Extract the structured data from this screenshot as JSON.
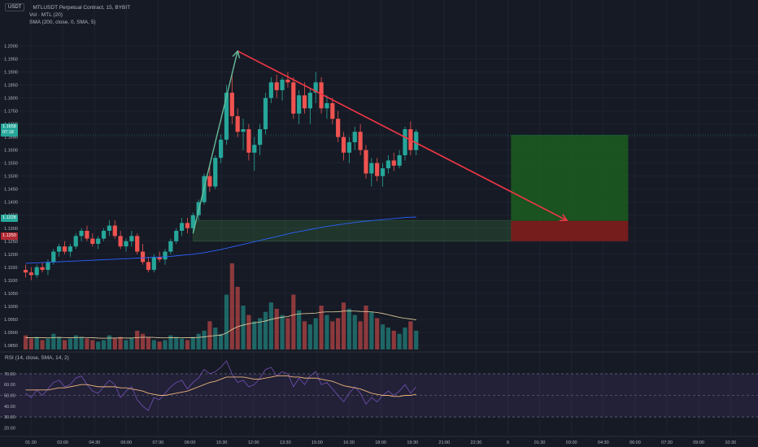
{
  "header": {
    "currency_label": "USDT",
    "symbol_title": "MTLUSDT Perpetual Contract, 15, BYBIT",
    "volume_indicator": "Vol · MTL (20)",
    "sma_indicator": "SMA (200, close, 0, SMA, 5)"
  },
  "rsi": {
    "label": "RSI (14, close, SMA, 14, 2)",
    "ticks": [
      "70.00",
      "60.00",
      "50.00",
      "40.00",
      "30.00",
      "20.00"
    ],
    "tick_values": [
      70,
      60,
      50,
      40,
      30,
      20
    ]
  },
  "price_scale": {
    "ticks": [
      "1.2000",
      "1.1950",
      "1.1900",
      "1.1850",
      "1.1800",
      "1.1750",
      "1.1700",
      "1.1650",
      "1.1600",
      "1.1550",
      "1.1500",
      "1.1450",
      "1.1400",
      "1.1350",
      "1.1300",
      "1.1250",
      "1.1200",
      "1.1150",
      "1.1100",
      "1.1050",
      "1.1000",
      "1.0950",
      "1.0900",
      "1.0850"
    ],
    "tick_values": [
      1.2,
      1.195,
      1.19,
      1.185,
      1.18,
      1.175,
      1.17,
      1.165,
      1.16,
      1.155,
      1.15,
      1.145,
      1.14,
      1.135,
      1.13,
      1.125,
      1.12,
      1.115,
      1.11,
      1.105,
      1.1,
      1.095,
      1.09,
      1.085
    ],
    "current_price_label": "1.1658",
    "current_price_sub": "07:18",
    "target_label": "1.1328",
    "stop_label": "1.1250"
  },
  "time_axis": {
    "labels": [
      "01:30",
      "03:00",
      "04:30",
      "06:00",
      "07:30",
      "09:00",
      "10:30",
      "12:00",
      "13:30",
      "15:00",
      "16:30",
      "18:00",
      "19:30",
      "21:00",
      "22:30",
      "6",
      "01:30",
      "03:00",
      "04:30",
      "06:00",
      "07:30",
      "09:00",
      "10:30"
    ]
  },
  "colors": {
    "background": "#161a25",
    "bull": "#26a69a",
    "bear": "#ef5350",
    "trendline": "#f23645",
    "sma": "#2962ff",
    "profit_zone": "#1b5e20",
    "loss_zone": "#7f1d1d",
    "rsi_line": "#7e57c2",
    "rsi_ma": "#f0b27a",
    "vol_ma": "#e8d4a2"
  },
  "chart_data": {
    "type": "candlestick",
    "interval_minutes": 15,
    "x_start": "01:30",
    "ohlc": [
      [
        1.114,
        1.116,
        1.111,
        1.113
      ],
      [
        1.113,
        1.115,
        1.11,
        1.112
      ],
      [
        1.112,
        1.116,
        1.111,
        1.115
      ],
      [
        1.115,
        1.117,
        1.113,
        1.114
      ],
      [
        1.114,
        1.118,
        1.112,
        1.117
      ],
      [
        1.117,
        1.122,
        1.116,
        1.121
      ],
      [
        1.121,
        1.124,
        1.119,
        1.123
      ],
      [
        1.123,
        1.125,
        1.12,
        1.121
      ],
      [
        1.121,
        1.124,
        1.119,
        1.123
      ],
      [
        1.123,
        1.128,
        1.122,
        1.127
      ],
      [
        1.127,
        1.13,
        1.125,
        1.129
      ],
      [
        1.129,
        1.131,
        1.125,
        1.126
      ],
      [
        1.126,
        1.128,
        1.123,
        1.124
      ],
      [
        1.124,
        1.127,
        1.122,
        1.126
      ],
      [
        1.126,
        1.13,
        1.125,
        1.129
      ],
      [
        1.129,
        1.133,
        1.127,
        1.131
      ],
      [
        1.131,
        1.133,
        1.126,
        1.127
      ],
      [
        1.127,
        1.129,
        1.122,
        1.123
      ],
      [
        1.123,
        1.126,
        1.121,
        1.125
      ],
      [
        1.125,
        1.129,
        1.123,
        1.127
      ],
      [
        1.127,
        1.128,
        1.12,
        1.121
      ],
      [
        1.121,
        1.124,
        1.116,
        1.117
      ],
      [
        1.117,
        1.119,
        1.113,
        1.114
      ],
      [
        1.114,
        1.12,
        1.113,
        1.119
      ],
      [
        1.119,
        1.121,
        1.117,
        1.118
      ],
      [
        1.118,
        1.122,
        1.116,
        1.121
      ],
      [
        1.121,
        1.126,
        1.12,
        1.125
      ],
      [
        1.125,
        1.13,
        1.124,
        1.129
      ],
      [
        1.129,
        1.134,
        1.127,
        1.132
      ],
      [
        1.132,
        1.134,
        1.128,
        1.13
      ],
      [
        1.13,
        1.136,
        1.129,
        1.135
      ],
      [
        1.135,
        1.141,
        1.133,
        1.14
      ],
      [
        1.14,
        1.151,
        1.139,
        1.15
      ],
      [
        1.15,
        1.155,
        1.144,
        1.146
      ],
      [
        1.146,
        1.158,
        1.145,
        1.157
      ],
      [
        1.157,
        1.166,
        1.155,
        1.164
      ],
      [
        1.164,
        1.185,
        1.162,
        1.182
      ],
      [
        1.182,
        1.19,
        1.17,
        1.173
      ],
      [
        1.173,
        1.176,
        1.165,
        1.167
      ],
      [
        1.167,
        1.172,
        1.16,
        1.168
      ],
      [
        1.168,
        1.17,
        1.156,
        1.159
      ],
      [
        1.159,
        1.165,
        1.152,
        1.162
      ],
      [
        1.162,
        1.17,
        1.158,
        1.168
      ],
      [
        1.168,
        1.182,
        1.166,
        1.18
      ],
      [
        1.18,
        1.188,
        1.178,
        1.186
      ],
      [
        1.186,
        1.189,
        1.18,
        1.183
      ],
      [
        1.183,
        1.188,
        1.179,
        1.187
      ],
      [
        1.187,
        1.19,
        1.184,
        1.186
      ],
      [
        1.186,
        1.188,
        1.172,
        1.174
      ],
      [
        1.174,
        1.183,
        1.17,
        1.181
      ],
      [
        1.181,
        1.186,
        1.174,
        1.176
      ],
      [
        1.176,
        1.184,
        1.17,
        1.182
      ],
      [
        1.182,
        1.19,
        1.178,
        1.186
      ],
      [
        1.186,
        1.188,
        1.174,
        1.176
      ],
      [
        1.176,
        1.181,
        1.172,
        1.178
      ],
      [
        1.178,
        1.18,
        1.17,
        1.172
      ],
      [
        1.172,
        1.175,
        1.163,
        1.165
      ],
      [
        1.165,
        1.167,
        1.156,
        1.159
      ],
      [
        1.159,
        1.165,
        1.155,
        1.163
      ],
      [
        1.163,
        1.169,
        1.16,
        1.167
      ],
      [
        1.167,
        1.17,
        1.158,
        1.16
      ],
      [
        1.16,
        1.162,
        1.149,
        1.151
      ],
      [
        1.151,
        1.157,
        1.146,
        1.155
      ],
      [
        1.155,
        1.157,
        1.148,
        1.15
      ],
      [
        1.15,
        1.155,
        1.146,
        1.153
      ],
      [
        1.153,
        1.158,
        1.151,
        1.156
      ],
      [
        1.156,
        1.159,
        1.152,
        1.154
      ],
      [
        1.154,
        1.16,
        1.153,
        1.158
      ],
      [
        1.158,
        1.169,
        1.156,
        1.168
      ],
      [
        1.168,
        1.171,
        1.158,
        1.16
      ],
      [
        1.16,
        1.168,
        1.158,
        1.167
      ]
    ],
    "volume": [
      9,
      7,
      8,
      6,
      7,
      10,
      8,
      6,
      7,
      9,
      8,
      7,
      6,
      5,
      6,
      9,
      7,
      8,
      6,
      7,
      12,
      10,
      8,
      6,
      5,
      6,
      9,
      8,
      7,
      6,
      8,
      10,
      12,
      18,
      14,
      10,
      35,
      55,
      40,
      28,
      22,
      18,
      20,
      24,
      30,
      26,
      22,
      20,
      35,
      25,
      18,
      16,
      20,
      28,
      22,
      18,
      20,
      30,
      26,
      22,
      18,
      28,
      24,
      20,
      16,
      14,
      12,
      10,
      14,
      18,
      12
    ],
    "volume_ma": [
      7.5,
      7.5,
      7.6,
      7.5,
      7.4,
      7.6,
      7.7,
      7.6,
      7.5,
      7.6,
      7.7,
      7.6,
      7.5,
      7.3,
      7.2,
      7.3,
      7.3,
      7.4,
      7.3,
      7.3,
      7.6,
      7.8,
      7.8,
      7.7,
      7.5,
      7.4,
      7.5,
      7.6,
      7.6,
      7.5,
      7.5,
      7.7,
      8.0,
      8.5,
      8.9,
      9.1,
      10.5,
      12.8,
      14.5,
      15.6,
      16.4,
      17.0,
      17.5,
      18.2,
      19.2,
      20.0,
      20.6,
      21.0,
      22.1,
      22.7,
      22.9,
      23.0,
      23.2,
      23.8,
      24.0,
      24.0,
      24.1,
      24.5,
      24.6,
      24.5,
      24.3,
      24.2,
      24.0,
      23.6,
      23.0,
      22.2,
      21.3,
      20.5,
      19.9,
      19.5,
      18.9
    ],
    "sma": [
      1.1165,
      1.1166,
      1.1167,
      1.1168,
      1.1169,
      1.117,
      1.1171,
      1.1172,
      1.1173,
      1.1174,
      1.1175,
      1.1176,
      1.1177,
      1.1178,
      1.1179,
      1.118,
      1.1181,
      1.1182,
      1.1183,
      1.1184,
      1.1185,
      1.1186,
      1.1187,
      1.1188,
      1.1189,
      1.119,
      1.1192,
      1.1194,
      1.1196,
      1.1198,
      1.12,
      1.1203,
      1.1206,
      1.121,
      1.1214,
      1.1218,
      1.1223,
      1.1228,
      1.1233,
      1.1238,
      1.1243,
      1.1248,
      1.1253,
      1.1258,
      1.1263,
      1.1268,
      1.1273,
      1.1278,
      1.1283,
      1.1287,
      1.1291,
      1.1295,
      1.1299,
      1.1303,
      1.1307,
      1.131,
      1.1313,
      1.1316,
      1.1319,
      1.1322,
      1.1325,
      1.1327,
      1.1329,
      1.1331,
      1.1333,
      1.1335,
      1.1337,
      1.1339,
      1.1341,
      1.1342,
      1.1343
    ],
    "rsi": [
      52,
      48,
      55,
      50,
      56,
      62,
      64,
      58,
      60,
      66,
      68,
      60,
      54,
      52,
      58,
      64,
      60,
      48,
      54,
      58,
      46,
      40,
      36,
      48,
      46,
      52,
      58,
      62,
      64,
      56,
      62,
      66,
      74,
      70,
      72,
      76,
      82,
      70,
      62,
      64,
      58,
      60,
      66,
      74,
      76,
      68,
      72,
      70,
      58,
      66,
      60,
      68,
      72,
      60,
      62,
      56,
      50,
      44,
      52,
      58,
      52,
      42,
      48,
      44,
      50,
      54,
      50,
      54,
      60,
      52,
      58
    ],
    "rsi_ma": [
      55,
      55,
      55,
      55,
      55,
      56,
      57,
      57,
      58,
      59,
      60,
      60,
      59,
      58,
      58,
      58,
      58,
      57,
      57,
      56,
      55,
      54,
      52,
      51,
      50,
      50,
      51,
      52,
      53,
      54,
      56,
      58,
      60,
      62,
      63,
      65,
      67,
      67,
      67,
      67,
      66,
      65,
      65,
      66,
      67,
      68,
      68,
      68,
      67,
      67,
      66,
      66,
      66,
      65,
      64,
      63,
      61,
      59,
      58,
      57,
      56,
      54,
      52,
      51,
      50,
      50,
      49,
      49,
      50,
      50,
      51
    ],
    "annotations": {
      "trendline": {
        "from": {
          "index": 38,
          "price": 1.198
        },
        "to": {
          "index": 97,
          "price": 1.133
        }
      },
      "impulse_arrow": {
        "from": {
          "index": 30,
          "price": 1.128
        },
        "to": {
          "index": 38,
          "price": 1.198
        }
      },
      "supply_zone": {
        "from_index": 30,
        "to_index": 87,
        "top": 1.133,
        "bottom": 1.125
      },
      "position": {
        "from_index": 87,
        "to_index": 108,
        "entry": 1.1328,
        "target": 1.1658,
        "stop": 1.125
      }
    },
    "price_range": [
      1.085,
      1.2045
    ],
    "rsi_range": [
      15,
      85
    ]
  }
}
